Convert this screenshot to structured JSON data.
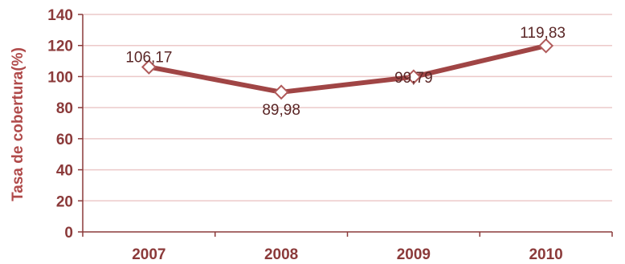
{
  "chart_data": {
    "type": "line",
    "categories": [
      "2007",
      "2008",
      "2009",
      "2010"
    ],
    "series": [
      {
        "values": [
          106.17,
          89.98,
          99.79,
          119.83
        ]
      }
    ],
    "data_labels": [
      "106,17",
      "89,98",
      "99,79",
      "119,83"
    ],
    "ylabel": "Tasa de cobertura(%)",
    "xlabel": "",
    "ylim": [
      0,
      140
    ],
    "yticks": [
      0,
      20,
      40,
      60,
      80,
      100,
      120,
      140
    ],
    "grid": true,
    "legend": "none",
    "colors": {
      "line": "#a04545",
      "marker_stroke": "#b05a5a",
      "grid": "#ecc9c9",
      "axis": "#8b3a3a",
      "text": "#8b3a3a"
    }
  }
}
